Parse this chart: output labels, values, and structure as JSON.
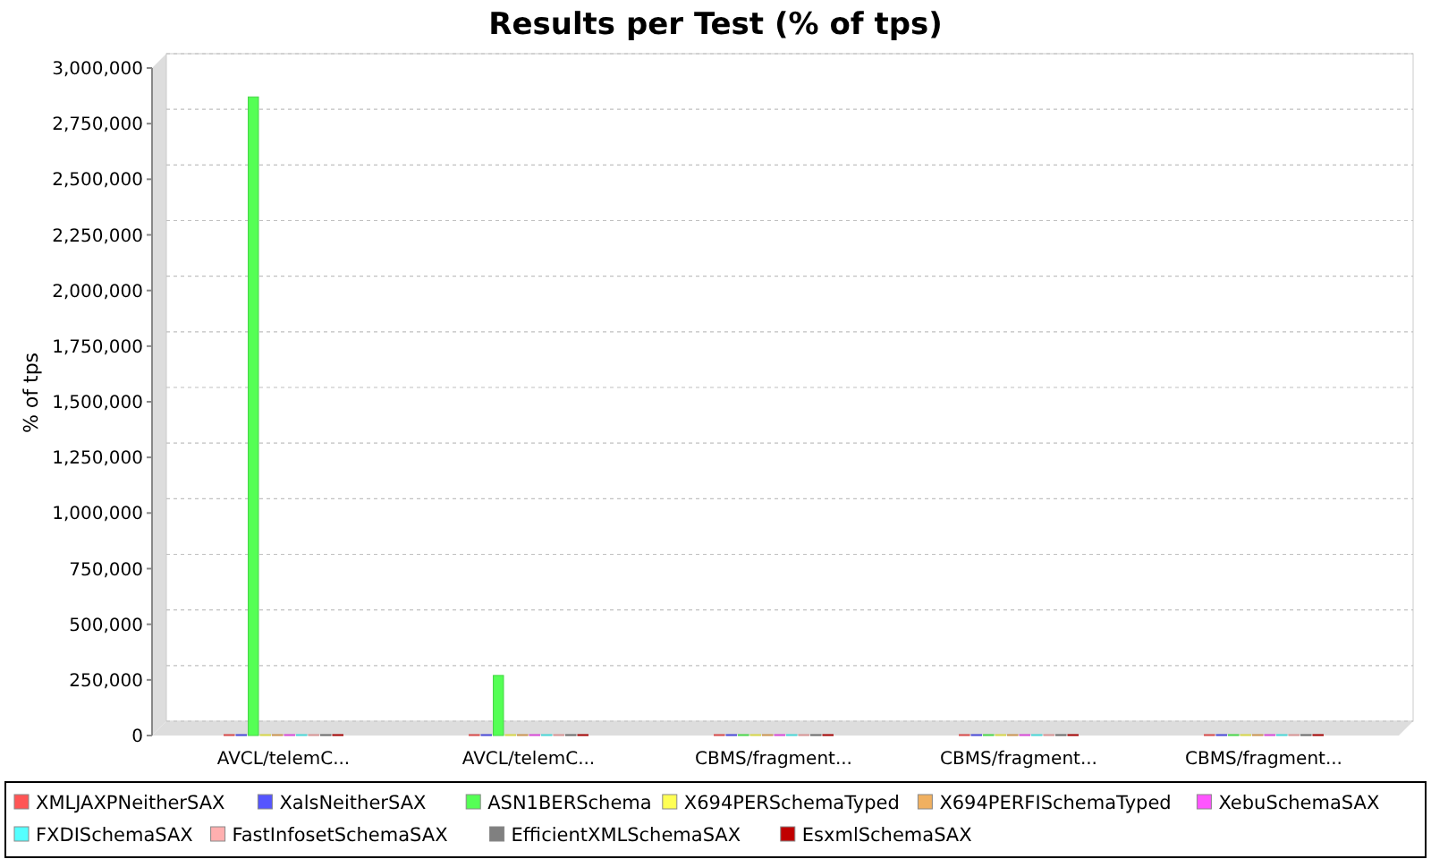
{
  "chart_data": {
    "type": "bar",
    "title": "Results per Test (% of tps)",
    "ylabel": "% of tps",
    "categories": [
      "AVCL/telemC...",
      "AVCL/telemC...",
      "CBMS/fragment...",
      "CBMS/fragment...",
      "CBMS/fragment..."
    ],
    "series": [
      {
        "name": "XMLJAXPNeitherSAX",
        "color": "#ff5555",
        "values": [
          0,
          0,
          0,
          0,
          0
        ]
      },
      {
        "name": "XalsNeitherSAX",
        "color": "#5555ff",
        "values": [
          0,
          0,
          0,
          0,
          0
        ]
      },
      {
        "name": "ASN1BERSchema",
        "color": "#55ff55",
        "values": [
          2870000,
          270000,
          0,
          0,
          0
        ]
      },
      {
        "name": "X694PERSchemaTyped",
        "color": "#ffff55",
        "values": [
          0,
          0,
          0,
          0,
          0
        ]
      },
      {
        "name": "X694PERFISchemaTyped",
        "color": "#f0b060",
        "values": [
          0,
          0,
          0,
          0,
          0
        ]
      },
      {
        "name": "XebuSchemaSAX",
        "color": "#ff55ff",
        "values": [
          0,
          0,
          0,
          0,
          0
        ]
      },
      {
        "name": "FXDISchemaSAX",
        "color": "#55ffff",
        "values": [
          0,
          0,
          0,
          0,
          0
        ]
      },
      {
        "name": "FastInfosetSchemaSAX",
        "color": "#ffafaf",
        "values": [
          0,
          0,
          0,
          0,
          0
        ]
      },
      {
        "name": "EfficientXMLSchemaSAX",
        "color": "#808080",
        "values": [
          0,
          0,
          0,
          0,
          0
        ]
      },
      {
        "name": "EsxmlSchemaSAX",
        "color": "#c00000",
        "values": [
          0,
          0,
          0,
          0,
          0
        ]
      }
    ],
    "ylim": [
      0,
      3000000
    ],
    "yticks": [
      {
        "value": 0,
        "label": "0"
      },
      {
        "value": 250000,
        "label": "250,000"
      },
      {
        "value": 500000,
        "label": "500,000"
      },
      {
        "value": 750000,
        "label": "750,000"
      },
      {
        "value": 1000000,
        "label": "1,000,000"
      },
      {
        "value": 1250000,
        "label": "1,250,000"
      },
      {
        "value": 1500000,
        "label": "1,500,000"
      },
      {
        "value": 1750000,
        "label": "1,750,000"
      },
      {
        "value": 2000000,
        "label": "2,000,000"
      },
      {
        "value": 2250000,
        "label": "2,250,000"
      },
      {
        "value": 2500000,
        "label": "2,500,000"
      },
      {
        "value": 2750000,
        "label": "2,750,000"
      },
      {
        "value": 3000000,
        "label": "3,000,000"
      }
    ],
    "grid": "y",
    "legend": "bottom"
  }
}
